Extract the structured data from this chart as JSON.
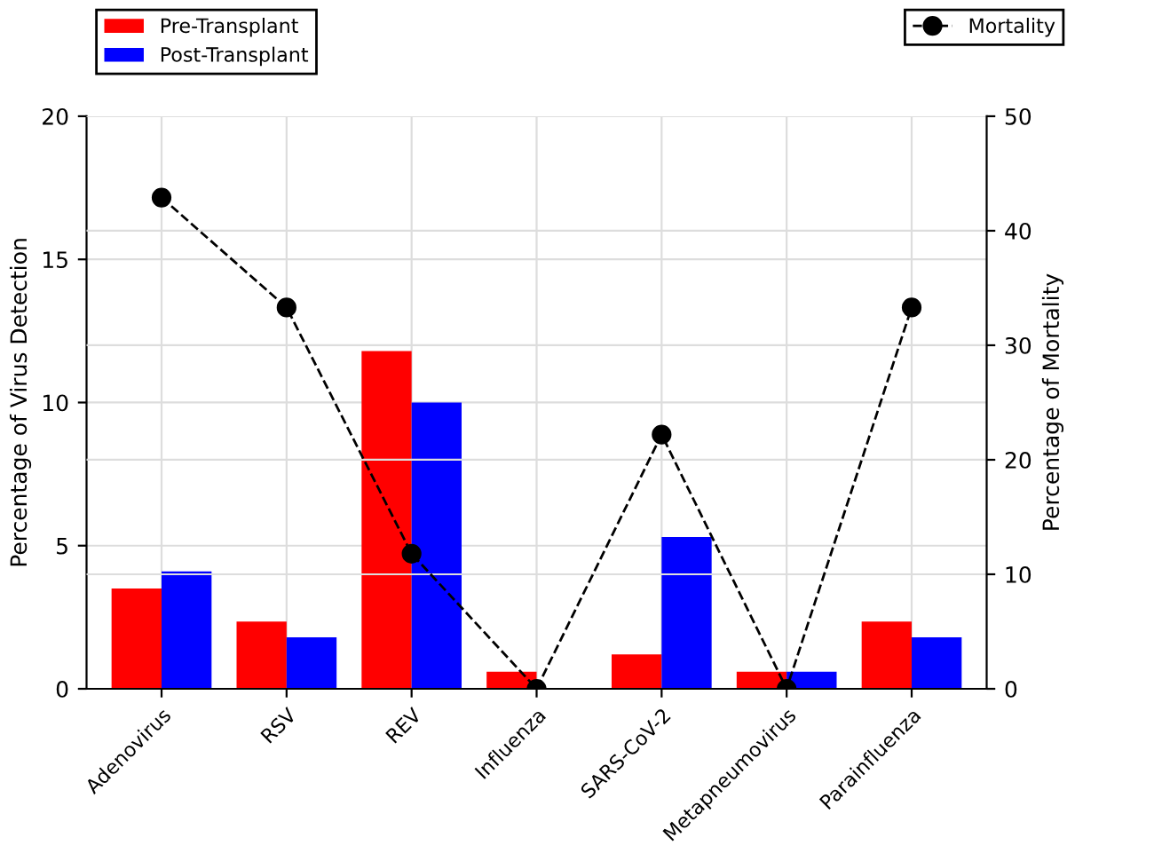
{
  "chart_data": {
    "type": "bar",
    "categories": [
      "Adenovirus",
      "RSV",
      "REV",
      "Influenza",
      "SARS-CoV-2",
      "Metapneumovirus",
      "Parainfluenza"
    ],
    "series": [
      {
        "name": "Pre-Transplant",
        "color": "#ff0000",
        "values": [
          3.5,
          2.35,
          11.8,
          0.6,
          1.2,
          0.6,
          2.35
        ]
      },
      {
        "name": "Post-Transplant",
        "color": "#0000ff",
        "values": [
          4.1,
          1.8,
          10.0,
          0,
          5.3,
          0.6,
          1.8
        ]
      },
      {
        "name": "Mortality",
        "type": "line",
        "axis": "y2",
        "color": "#000000",
        "marker": "circle",
        "line_style": "dashed",
        "values": [
          42.9,
          33.3,
          11.8,
          0,
          22.2,
          0,
          33.3
        ]
      }
    ],
    "ylabel": "Percentage of Virus Detection",
    "y2label": "Percentage of Mortality",
    "ylim": [
      0,
      20
    ],
    "yticks": [
      0,
      5,
      10,
      15,
      20
    ],
    "y2lim": [
      0,
      50
    ],
    "y2ticks": [
      0,
      10,
      20,
      30,
      40,
      50
    ],
    "grid": true,
    "legend": "top"
  }
}
